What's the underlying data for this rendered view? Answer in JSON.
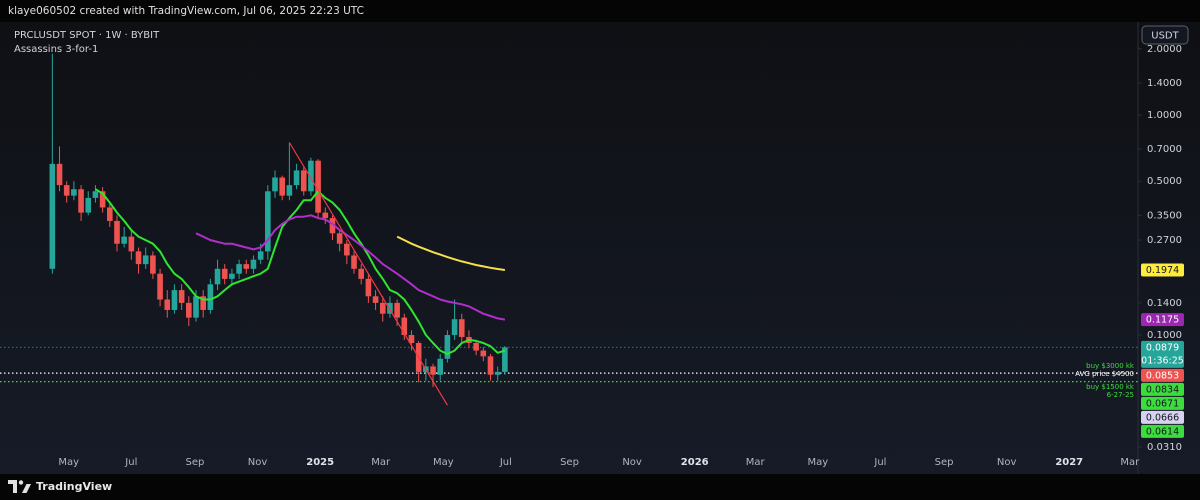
{
  "header": {
    "text": "klaye060502 created with TradingView.com, Jul 06, 2025 22:23 UTC"
  },
  "footer": {
    "brand": "TradingView"
  },
  "chart_data": {
    "type": "candlestick",
    "symbol": "PRCLUSDT SPOT · 1W · BYBIT",
    "indicator": "Assassins 3-for-1",
    "currency": "USDT",
    "log_scale": true,
    "grid": false,
    "up_color": "#26a69a",
    "down_color": "#ef5350",
    "x": [
      "2024-04-15",
      "2024-04-22",
      "2024-04-29",
      "2024-05-06",
      "2024-05-13",
      "2024-05-20",
      "2024-05-27",
      "2024-06-03",
      "2024-06-10",
      "2024-06-17",
      "2024-06-24",
      "2024-07-01",
      "2024-07-08",
      "2024-07-15",
      "2024-07-22",
      "2024-07-29",
      "2024-08-05",
      "2024-08-12",
      "2024-08-19",
      "2024-08-26",
      "2024-09-02",
      "2024-09-09",
      "2024-09-16",
      "2024-09-23",
      "2024-09-30",
      "2024-10-07",
      "2024-10-14",
      "2024-10-21",
      "2024-10-28",
      "2024-11-04",
      "2024-11-11",
      "2024-11-18",
      "2024-11-25",
      "2024-12-02",
      "2024-12-09",
      "2024-12-16",
      "2024-12-23",
      "2024-12-30",
      "2025-01-06",
      "2025-01-13",
      "2025-01-20",
      "2025-01-27",
      "2025-02-03",
      "2025-02-10",
      "2025-02-17",
      "2025-02-24",
      "2025-03-03",
      "2025-03-10",
      "2025-03-17",
      "2025-03-24",
      "2025-03-31",
      "2025-04-07",
      "2025-04-14",
      "2025-04-21",
      "2025-04-28",
      "2025-05-05",
      "2025-05-12",
      "2025-05-19",
      "2025-05-26",
      "2025-06-02",
      "2025-06-09",
      "2025-06-16",
      "2025-06-23",
      "2025-06-30"
    ],
    "open": [
      0.2,
      0.6,
      0.48,
      0.43,
      0.46,
      0.36,
      0.42,
      0.45,
      0.38,
      0.33,
      0.26,
      0.28,
      0.24,
      0.21,
      0.23,
      0.19,
      0.145,
      0.13,
      0.16,
      0.14,
      0.12,
      0.15,
      0.13,
      0.17,
      0.2,
      0.18,
      0.19,
      0.21,
      0.2,
      0.22,
      0.24,
      0.45,
      0.52,
      0.43,
      0.48,
      0.56,
      0.45,
      0.62,
      0.36,
      0.34,
      0.29,
      0.26,
      0.23,
      0.2,
      0.18,
      0.15,
      0.14,
      0.125,
      0.14,
      0.12,
      0.1,
      0.092,
      0.068,
      0.072,
      0.066,
      0.078,
      0.1,
      0.118,
      0.098,
      0.092,
      0.085,
      0.08,
      0.066,
      0.068
    ],
    "high": [
      1.9,
      0.72,
      0.5,
      0.5,
      0.48,
      0.45,
      0.48,
      0.47,
      0.4,
      0.35,
      0.31,
      0.3,
      0.25,
      0.25,
      0.24,
      0.2,
      0.16,
      0.17,
      0.17,
      0.15,
      0.16,
      0.16,
      0.18,
      0.22,
      0.21,
      0.2,
      0.22,
      0.22,
      0.23,
      0.26,
      0.48,
      0.56,
      0.53,
      0.75,
      0.6,
      0.58,
      0.64,
      0.63,
      0.38,
      0.35,
      0.3,
      0.27,
      0.24,
      0.21,
      0.19,
      0.16,
      0.15,
      0.15,
      0.145,
      0.125,
      0.105,
      0.094,
      0.078,
      0.074,
      0.082,
      0.105,
      0.145,
      0.125,
      0.105,
      0.095,
      0.088,
      0.082,
      0.072,
      0.089
    ],
    "low": [
      0.19,
      0.45,
      0.4,
      0.41,
      0.33,
      0.35,
      0.4,
      0.36,
      0.31,
      0.24,
      0.25,
      0.22,
      0.19,
      0.2,
      0.18,
      0.135,
      0.12,
      0.125,
      0.13,
      0.11,
      0.115,
      0.12,
      0.125,
      0.16,
      0.17,
      0.17,
      0.18,
      0.19,
      0.19,
      0.21,
      0.22,
      0.42,
      0.41,
      0.41,
      0.46,
      0.43,
      0.43,
      0.34,
      0.32,
      0.27,
      0.24,
      0.21,
      0.19,
      0.17,
      0.14,
      0.13,
      0.115,
      0.12,
      0.11,
      0.095,
      0.085,
      0.061,
      0.062,
      0.058,
      0.062,
      0.075,
      0.095,
      0.093,
      0.087,
      0.081,
      0.076,
      0.062,
      0.062,
      0.066
    ],
    "close": [
      0.6,
      0.48,
      0.43,
      0.46,
      0.36,
      0.42,
      0.45,
      0.38,
      0.33,
      0.26,
      0.28,
      0.24,
      0.21,
      0.23,
      0.19,
      0.145,
      0.13,
      0.16,
      0.14,
      0.12,
      0.15,
      0.13,
      0.17,
      0.2,
      0.18,
      0.19,
      0.21,
      0.2,
      0.22,
      0.24,
      0.45,
      0.52,
      0.43,
      0.48,
      0.56,
      0.45,
      0.62,
      0.36,
      0.34,
      0.29,
      0.26,
      0.23,
      0.2,
      0.18,
      0.15,
      0.14,
      0.125,
      0.14,
      0.12,
      0.1,
      0.092,
      0.068,
      0.072,
      0.066,
      0.078,
      0.1,
      0.118,
      0.098,
      0.092,
      0.085,
      0.08,
      0.066,
      0.068,
      0.0879
    ],
    "lines": [
      {
        "color": "#2ee62e",
        "values": [
          null,
          null,
          null,
          null,
          null,
          null,
          0.46,
          0.44,
          0.4,
          0.36,
          0.33,
          0.3,
          0.28,
          0.27,
          0.26,
          0.24,
          0.21,
          0.19,
          0.18,
          0.165,
          0.15,
          0.145,
          0.145,
          0.15,
          0.16,
          0.17,
          0.175,
          0.18,
          0.185,
          0.19,
          0.2,
          0.25,
          0.31,
          0.34,
          0.37,
          0.41,
          0.41,
          0.45,
          0.42,
          0.4,
          0.37,
          0.33,
          0.29,
          0.26,
          0.23,
          0.2,
          0.18,
          0.16,
          0.155,
          0.145,
          0.13,
          0.115,
          0.1,
          0.092,
          0.085,
          0.082,
          0.085,
          0.092,
          0.095,
          0.094,
          0.092,
          0.089,
          0.083,
          0.085
        ]
      },
      {
        "color": "#b02fc8",
        "values": [
          null,
          null,
          null,
          null,
          null,
          null,
          null,
          null,
          null,
          null,
          null,
          null,
          null,
          null,
          null,
          null,
          null,
          null,
          null,
          null,
          0.29,
          0.28,
          0.27,
          0.265,
          0.26,
          0.26,
          0.255,
          0.25,
          0.245,
          0.25,
          0.27,
          0.3,
          0.32,
          0.335,
          0.345,
          0.345,
          0.35,
          0.34,
          0.335,
          0.32,
          0.3,
          0.285,
          0.27,
          0.255,
          0.24,
          0.225,
          0.21,
          0.2,
          0.19,
          0.18,
          0.17,
          0.16,
          0.155,
          0.15,
          0.145,
          0.142,
          0.14,
          0.138,
          0.135,
          0.13,
          0.125,
          0.122,
          0.119,
          0.1175
        ]
      },
      {
        "color": "#f5e04a",
        "values": [
          null,
          null,
          null,
          null,
          null,
          null,
          null,
          null,
          null,
          null,
          null,
          null,
          null,
          null,
          null,
          null,
          null,
          null,
          null,
          null,
          null,
          null,
          null,
          null,
          null,
          null,
          null,
          null,
          null,
          null,
          null,
          null,
          null,
          null,
          null,
          null,
          null,
          null,
          null,
          null,
          null,
          null,
          null,
          null,
          null,
          null,
          null,
          null,
          0.28,
          0.27,
          0.26,
          0.252,
          0.245,
          0.238,
          0.232,
          0.226,
          0.221,
          0.216,
          0.212,
          0.208,
          0.205,
          0.202,
          0.1995,
          0.1974
        ]
      }
    ],
    "trendline": {
      "color": "#f23645",
      "x": [
        "2024-12-02",
        "2025-05-05"
      ],
      "values": [
        0.75,
        0.048
      ]
    },
    "hlines": [
      {
        "value": 0.0879,
        "color": "#26a69a"
      },
      {
        "value": 0.0671,
        "color": "#ffffff"
      },
      {
        "value": 0.0614,
        "color": "#3ddc3d"
      }
    ],
    "annotations": [
      {
        "text": "buy $3000 kk",
        "color": "#3ddc3d"
      },
      {
        "text": "AVG price $4500",
        "color": "#ffffff"
      },
      {
        "text": "buy $1500  kk",
        "color": "#3ddc3d"
      },
      {
        "text": "6-27-25",
        "color": "#3ddc3d"
      }
    ],
    "price_labels": [
      {
        "value": 0.1974,
        "color": "#ffeb3b",
        "text_color": "#131722"
      },
      {
        "value": 0.1175,
        "color": "#9c27b0",
        "text_color": "#ffffff"
      },
      {
        "value": 0.0879,
        "color": "#26a69a",
        "text_color": "#ffffff"
      },
      {
        "value": 0.0853,
        "color": "#ef5350",
        "text_color": "#ffffff"
      },
      {
        "value": 0.0834,
        "color": "#3ddc3d",
        "text_color": "#131722"
      },
      {
        "value": 0.0671,
        "color": "#3ddc3d",
        "text_color": "#131722"
      },
      {
        "value": 0.0666,
        "color": "#d7d2f0",
        "text_color": "#131722"
      },
      {
        "value": 0.0614,
        "color": "#3ddc3d",
        "text_color": "#131722"
      }
    ],
    "countdown": "01:36:25",
    "xlim": [
      "2024-02-24",
      "2027-03-09"
    ],
    "xticks": [
      {
        "value": "2024-05-01",
        "label": "May"
      },
      {
        "value": "2024-07-01",
        "label": "Jul"
      },
      {
        "value": "2024-09-01",
        "label": "Sep"
      },
      {
        "value": "2024-11-01",
        "label": "Nov"
      },
      {
        "value": "2025-01-01",
        "label": "2025"
      },
      {
        "value": "2025-03-01",
        "label": "Mar"
      },
      {
        "value": "2025-05-01",
        "label": "May"
      },
      {
        "value": "2025-07-01",
        "label": "Jul"
      },
      {
        "value": "2025-09-01",
        "label": "Sep"
      },
      {
        "value": "2025-11-01",
        "label": "Nov"
      },
      {
        "value": "2026-01-01",
        "label": "2026"
      },
      {
        "value": "2026-03-01",
        "label": "Mar"
      },
      {
        "value": "2026-05-01",
        "label": "May"
      },
      {
        "value": "2026-07-01",
        "label": "Jul"
      },
      {
        "value": "2026-09-01",
        "label": "Sep"
      },
      {
        "value": "2026-11-01",
        "label": "Nov"
      },
      {
        "value": "2027-01-01",
        "label": "2027"
      },
      {
        "value": "2027-03-01",
        "label": "Mar"
      }
    ],
    "ylim": [
      0.0294,
      2.647
    ],
    "yticks": [
      {
        "value": 2,
        "label": "2.0000"
      },
      {
        "value": 1.4,
        "label": "1.4000"
      },
      {
        "value": 1,
        "label": "1.0000"
      },
      {
        "value": 0.7,
        "label": "0.7000"
      },
      {
        "value": 0.5,
        "label": "0.5000"
      },
      {
        "value": 0.35,
        "label": "0.3500"
      },
      {
        "value": 0.27,
        "label": "0.2700"
      },
      {
        "value": 0.14,
        "label": "0.1400"
      },
      {
        "value": 0.1,
        "label": "0.1000"
      },
      {
        "value": 0.031,
        "label": "0.0310"
      }
    ]
  }
}
